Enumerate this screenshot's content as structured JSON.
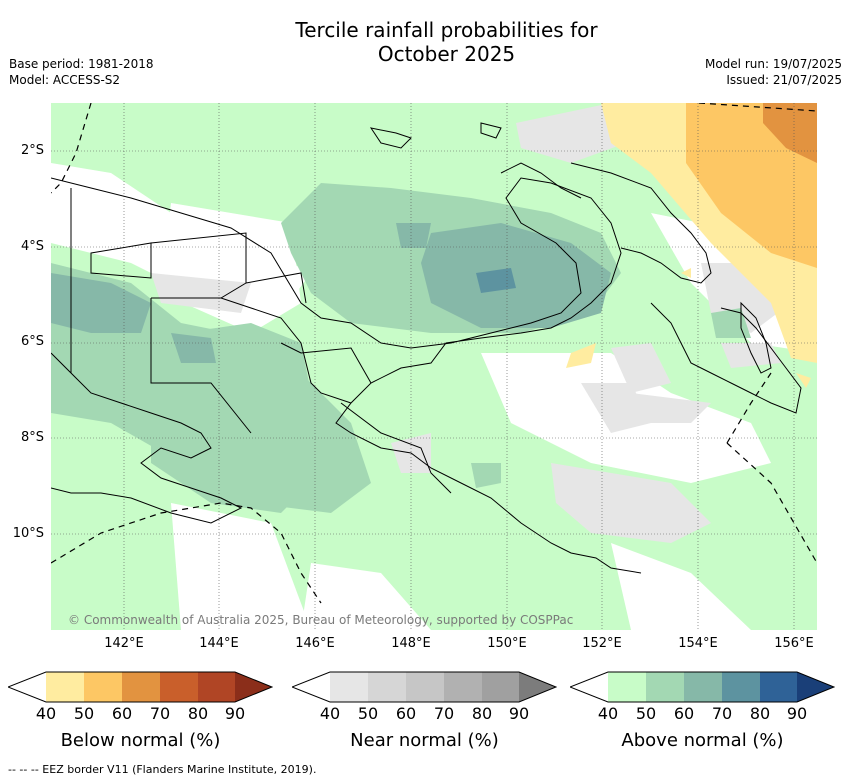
{
  "title_line1": "Tercile rainfall probabilities for",
  "title_line2": "October 2025",
  "meta": {
    "base_period": "Base period: 1981-2018",
    "model": "Model: ACCESS-S2",
    "model_run": "Model run: 19/07/2025",
    "issued": "Issued: 21/07/2025"
  },
  "map": {
    "region": "Papua New Guinea",
    "lat_ticks": [
      "2°S",
      "4°S",
      "6°S",
      "8°S",
      "10°S"
    ],
    "lon_ticks": [
      "142°E",
      "144°E",
      "146°E",
      "148°E",
      "150°E",
      "152°E",
      "154°E",
      "156°E"
    ],
    "copyright": "© Commonwealth of Australia 2025, Bureau of Meteorology, supported by COSPPac"
  },
  "colorbars": [
    {
      "label": "Below normal (%)",
      "ticks": [
        "40",
        "50",
        "60",
        "70",
        "80",
        "90"
      ],
      "colors": [
        "#ffffff",
        "#ffeca0",
        "#fdc764",
        "#e29340",
        "#c95f2b",
        "#b04525",
        "#8b2e1a"
      ]
    },
    {
      "label": "Near normal (%)",
      "ticks": [
        "40",
        "50",
        "60",
        "70",
        "80",
        "90"
      ],
      "colors": [
        "#ffffff",
        "#e6e6e6",
        "#d6d6d6",
        "#c6c6c6",
        "#b1b1b1",
        "#a0a0a0",
        "#7c7c7c"
      ]
    },
    {
      "label": "Above normal (%)",
      "ticks": [
        "40",
        "50",
        "60",
        "70",
        "80",
        "90"
      ],
      "colors": [
        "#ffffff",
        "#c8fcc8",
        "#a3d8b3",
        "#86b8a8",
        "#5d93a0",
        "#2f6297",
        "#1a3f78"
      ]
    }
  ],
  "footer": "-- -- -- EEZ border V11 (Flanders Marine Institute, 2019)."
}
